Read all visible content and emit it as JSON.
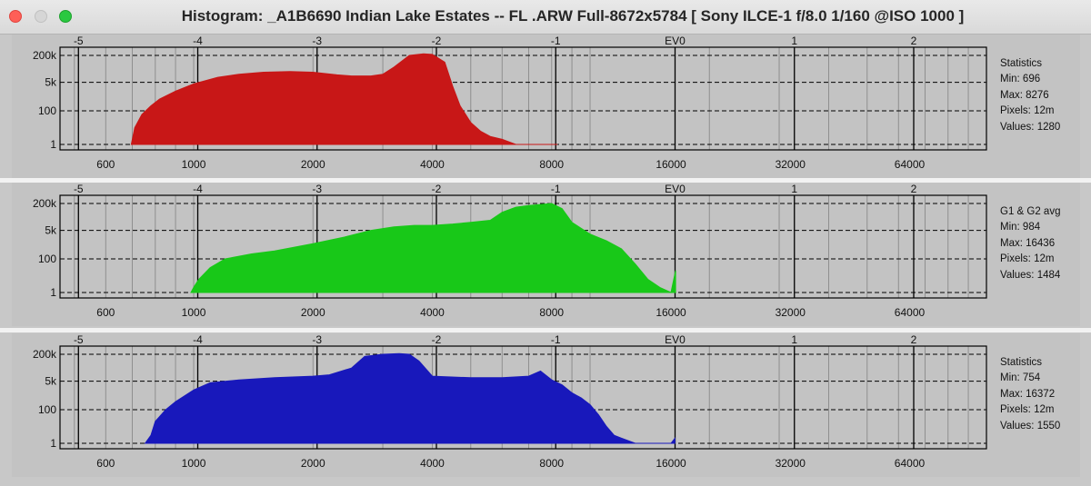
{
  "window": {
    "title": "Histogram: _A1B6690 Indian Lake Estates -- FL .ARW Full-8672x5784 [ Sony ILCE-1 f/8.0 1/160 @ISO 1000 ]"
  },
  "colors": {
    "red": "#c81717",
    "green": "#18c818",
    "blue": "#1818bb",
    "panel_bg": "#c3c3c3",
    "plot_border": "#000000"
  },
  "chart_data": [
    {
      "type": "area",
      "channel": "red",
      "x_scale": "log2",
      "xlim": [
        460,
        100000
      ],
      "y_scale": "log",
      "ev_ticks": [
        "-5",
        "-4",
        "-3",
        "-2",
        "-1",
        "EV0",
        "1",
        "2"
      ],
      "ev_values": [
        -5,
        -4,
        -3,
        -2,
        -1,
        0,
        1,
        2
      ],
      "ev0_value": 16384,
      "x_tick_labels": [
        "600",
        "1000",
        "2000",
        "4000",
        "8000",
        "16000",
        "32000",
        "64000"
      ],
      "x_tick_values": [
        600,
        1000,
        2000,
        4000,
        8000,
        16000,
        32000,
        64000
      ],
      "y_tick_labels": [
        "200k",
        "5k",
        "100",
        "1"
      ],
      "y_tick_values": [
        200000,
        5000,
        100,
        1
      ],
      "grid": true,
      "stats": {
        "heading": "Statistics",
        "min": "Min: 696",
        "max": "Max: 8276",
        "pixels": "Pixels: 12m",
        "values": "Values: 1280"
      },
      "x": [
        696,
        710,
        740,
        780,
        820,
        900,
        1000,
        1150,
        1300,
        1500,
        1750,
        2000,
        2300,
        2500,
        2800,
        3000,
        3200,
        3500,
        3800,
        4000,
        4300,
        4500,
        4700,
        5000,
        5300,
        5600,
        6000,
        6500,
        7000,
        7500,
        8000,
        8276
      ],
      "y": [
        1,
        10,
        60,
        200,
        500,
        1500,
        4000,
        10000,
        15000,
        20000,
        22000,
        20000,
        14000,
        12000,
        12000,
        15000,
        40000,
        200000,
        250000,
        230000,
        80000,
        3000,
        200,
        20,
        6,
        3,
        2,
        1,
        1,
        1,
        1,
        1
      ]
    },
    {
      "type": "area",
      "channel": "green",
      "x_scale": "log2",
      "xlim": [
        460,
        100000
      ],
      "y_scale": "log",
      "ev_ticks": [
        "-5",
        "-4",
        "-3",
        "-2",
        "-1",
        "EV0",
        "1",
        "2"
      ],
      "ev_values": [
        -5,
        -4,
        -3,
        -2,
        -1,
        0,
        1,
        2
      ],
      "ev0_value": 16384,
      "x_tick_labels": [
        "600",
        "1000",
        "2000",
        "4000",
        "8000",
        "16000",
        "32000",
        "64000"
      ],
      "x_tick_values": [
        600,
        1000,
        2000,
        4000,
        8000,
        16000,
        32000,
        64000
      ],
      "y_tick_labels": [
        "200k",
        "5k",
        "100",
        "1"
      ],
      "y_tick_values": [
        200000,
        5000,
        100,
        1
      ],
      "grid": true,
      "stats": {
        "heading": "G1 & G2 avg",
        "min": "Min: 984",
        "max": "Max: 16436",
        "pixels": "Pixels: 12m",
        "values": "Values: 1484"
      },
      "x": [
        984,
        1000,
        1030,
        1100,
        1200,
        1400,
        1600,
        2000,
        2400,
        2800,
        3200,
        3600,
        4000,
        4500,
        5000,
        5600,
        6000,
        6500,
        7000,
        8000,
        8500,
        9000,
        10000,
        11000,
        12000,
        13000,
        14000,
        15000,
        16000,
        16436
      ],
      "y": [
        1,
        2,
        6,
        30,
        100,
        200,
        300,
        800,
        2000,
        5000,
        8000,
        10000,
        10000,
        12000,
        15000,
        20000,
        60000,
        120000,
        150000,
        200000,
        100000,
        15000,
        3000,
        1200,
        400,
        50,
        6,
        2,
        1,
        20
      ]
    },
    {
      "type": "area",
      "channel": "blue",
      "x_scale": "log2",
      "xlim": [
        460,
        100000
      ],
      "y_scale": "log",
      "ev_ticks": [
        "-5",
        "-4",
        "-3",
        "-2",
        "-1",
        "EV0",
        "1",
        "2"
      ],
      "ev_values": [
        -5,
        -4,
        -3,
        -2,
        -1,
        0,
        1,
        2
      ],
      "ev0_value": 16384,
      "x_tick_labels": [
        "600",
        "1000",
        "2000",
        "4000",
        "8000",
        "16000",
        "32000",
        "64000"
      ],
      "x_tick_values": [
        600,
        1000,
        2000,
        4000,
        8000,
        16000,
        32000,
        64000
      ],
      "y_tick_labels": [
        "200k",
        "5k",
        "100",
        "1"
      ],
      "y_tick_values": [
        200000,
        5000,
        100,
        1
      ],
      "grid": true,
      "stats": {
        "heading": "Statistics",
        "min": "Min: 754",
        "max": "Max: 16372",
        "pixels": "Pixels: 12m",
        "values": "Values: 1550"
      },
      "x": [
        754,
        780,
        800,
        850,
        900,
        1000,
        1100,
        1300,
        1600,
        2000,
        2200,
        2500,
        2700,
        3000,
        3300,
        3500,
        3700,
        4000,
        5000,
        6000,
        7000,
        7500,
        8000,
        8500,
        9000,
        9500,
        10000,
        10500,
        11000,
        11500,
        12000,
        13000,
        14000,
        16000,
        16372
      ],
      "y": [
        1,
        3,
        20,
        100,
        300,
        1500,
        4000,
        6000,
        8000,
        10000,
        12000,
        30000,
        150000,
        200000,
        220000,
        200000,
        80000,
        10000,
        8000,
        8000,
        10000,
        20000,
        6000,
        3000,
        1000,
        500,
        200,
        50,
        10,
        3,
        2,
        1,
        1,
        1,
        2
      ]
    }
  ]
}
